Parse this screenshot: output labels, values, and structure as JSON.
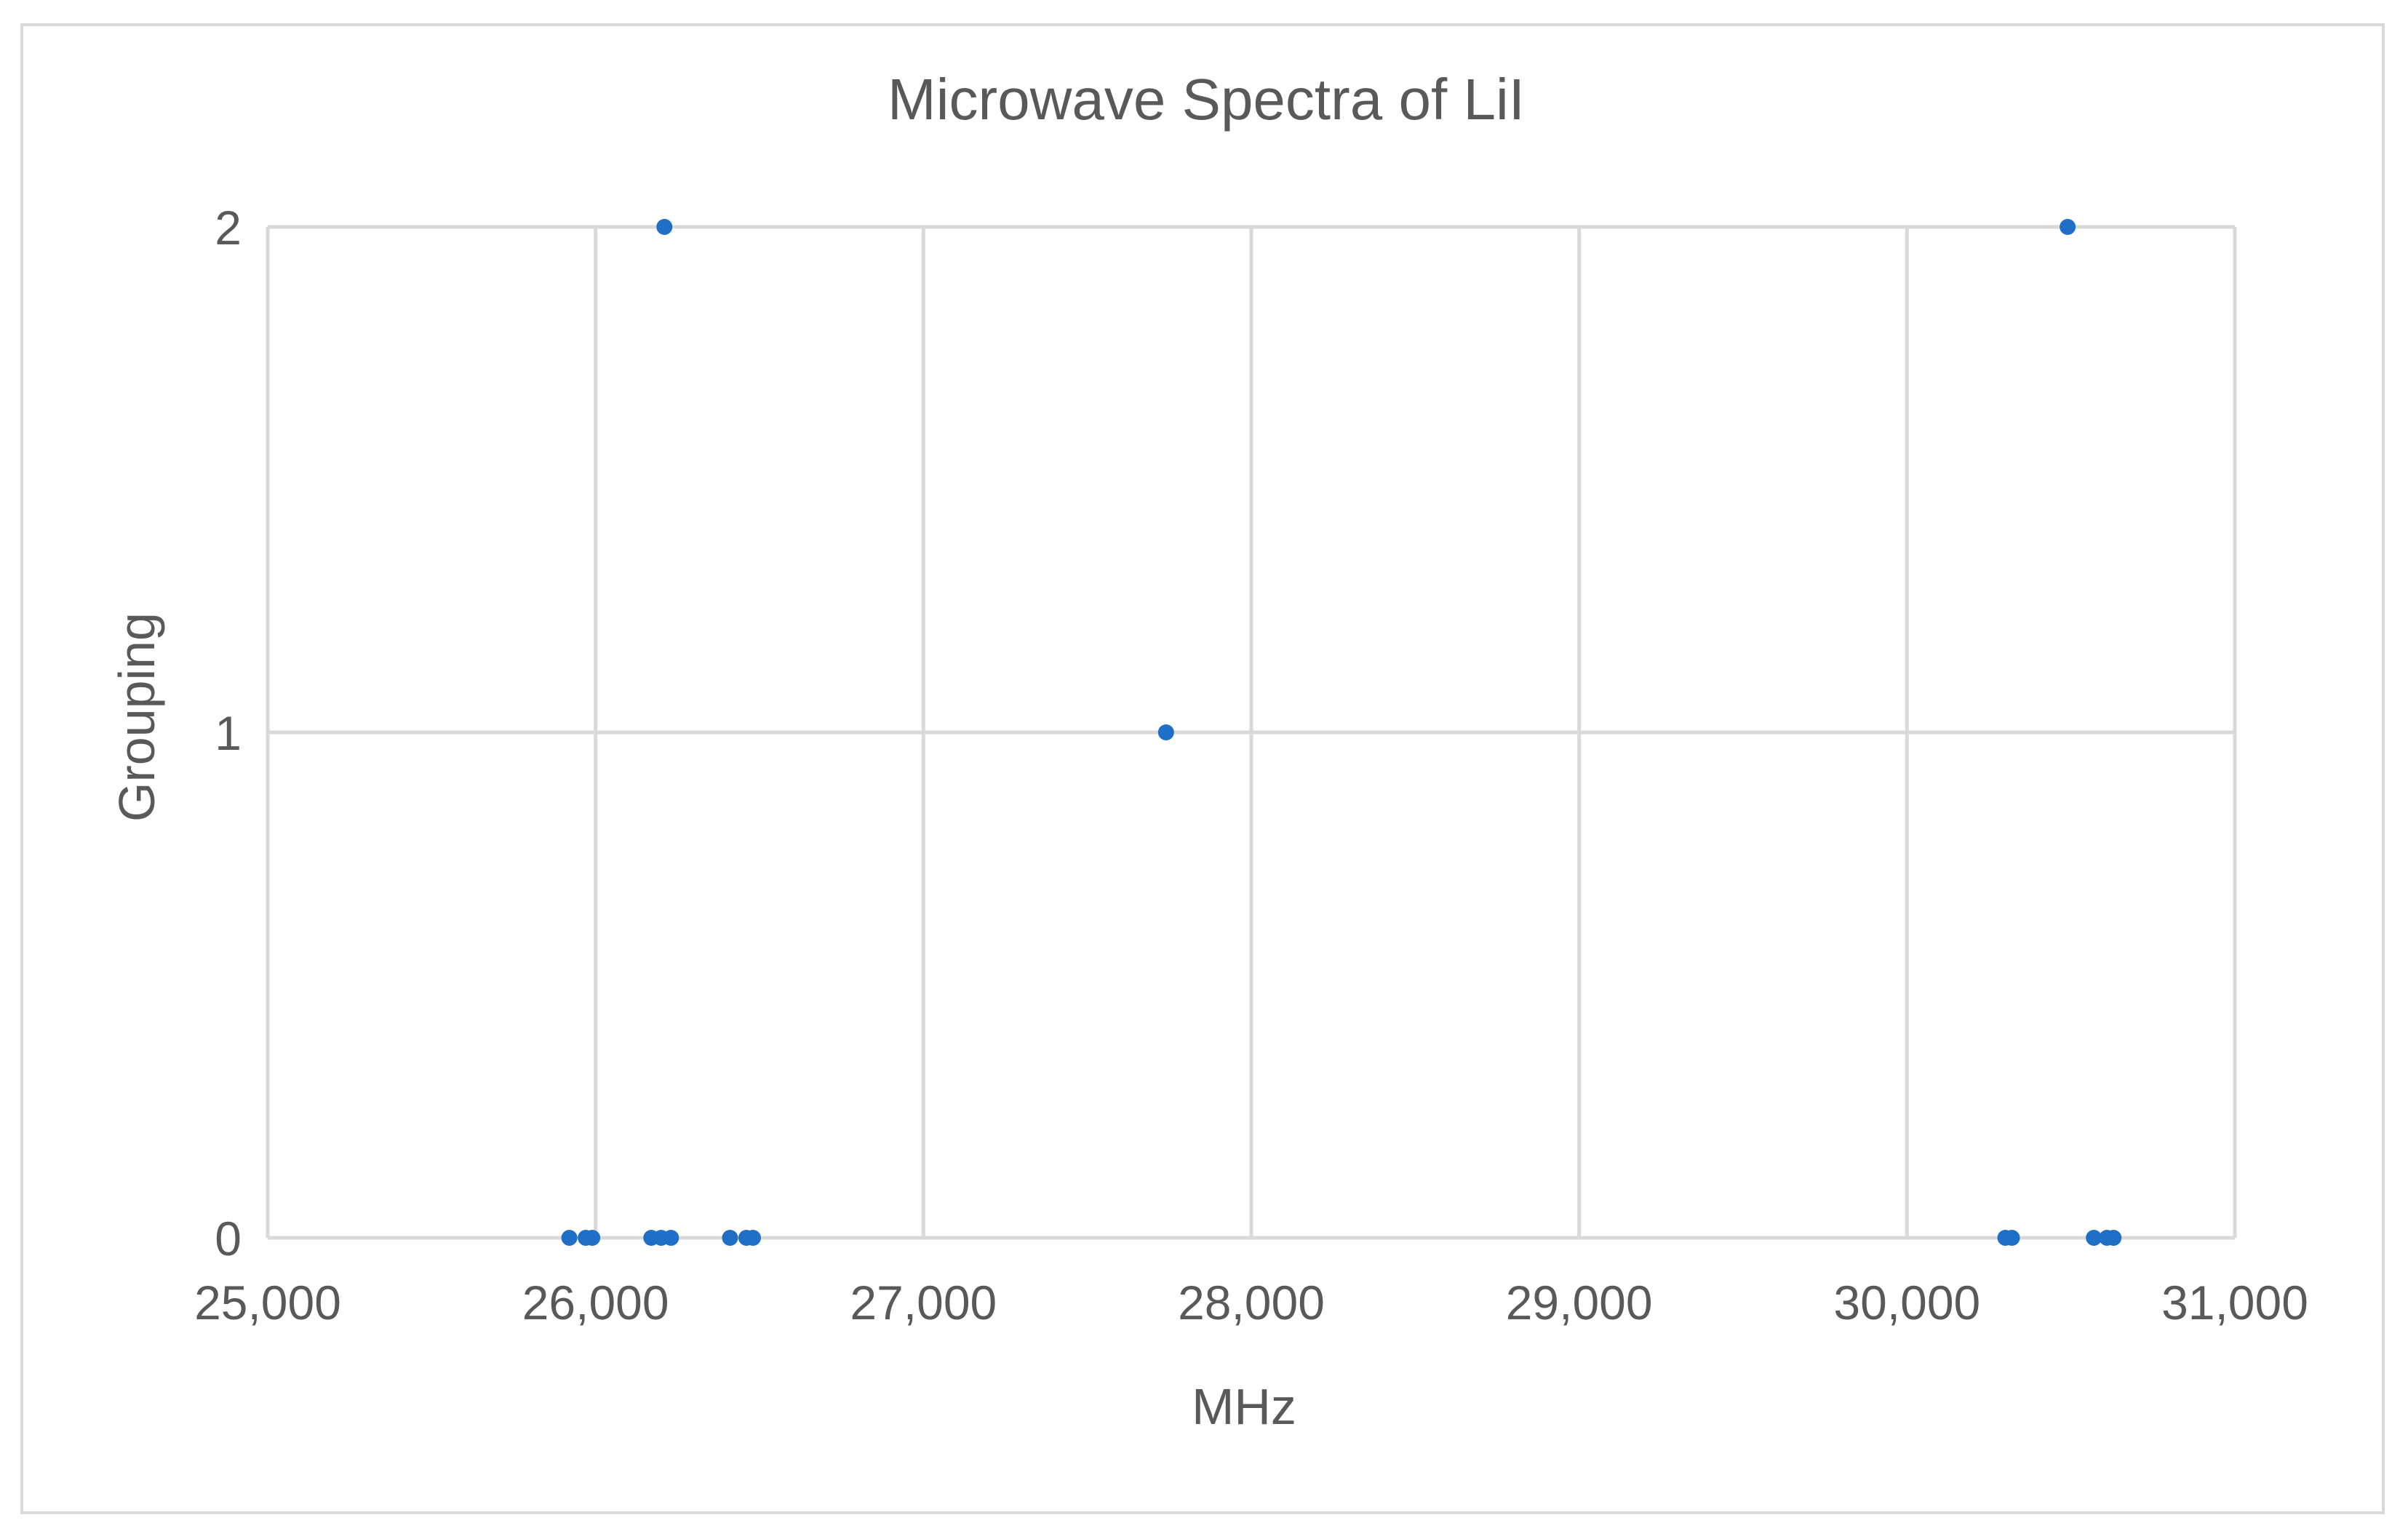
{
  "chart_data": {
    "type": "scatter",
    "title": "Microwave Spectra of LiI",
    "xlabel": "MHz",
    "ylabel": "Grouping",
    "xlim": [
      25000,
      31000
    ],
    "ylim": [
      0,
      2
    ],
    "x_ticks": [
      25000,
      26000,
      27000,
      28000,
      29000,
      30000,
      31000
    ],
    "x_tick_labels": [
      "25,000",
      "26,000",
      "27,000",
      "28,000",
      "29,000",
      "30,000",
      "31,000"
    ],
    "y_ticks": [
      0,
      1,
      2
    ],
    "y_tick_labels": [
      "0",
      "1",
      "2"
    ],
    "grid": true,
    "legend": "none",
    "marker_color": "#1f6fc6",
    "series": [
      {
        "name": "Grouping",
        "points": [
          {
            "x": 25920,
            "y": 0
          },
          {
            "x": 25970,
            "y": 0
          },
          {
            "x": 25990,
            "y": 0
          },
          {
            "x": 26170,
            "y": 0
          },
          {
            "x": 26200,
            "y": 0
          },
          {
            "x": 26230,
            "y": 0
          },
          {
            "x": 26410,
            "y": 0
          },
          {
            "x": 26460,
            "y": 0
          },
          {
            "x": 26480,
            "y": 0
          },
          {
            "x": 26210,
            "y": 2
          },
          {
            "x": 27740,
            "y": 1
          },
          {
            "x": 30300,
            "y": 0
          },
          {
            "x": 30320,
            "y": 0
          },
          {
            "x": 30490,
            "y": 2
          },
          {
            "x": 30570,
            "y": 0
          },
          {
            "x": 30610,
            "y": 0
          },
          {
            "x": 30630,
            "y": 0
          }
        ]
      }
    ]
  }
}
